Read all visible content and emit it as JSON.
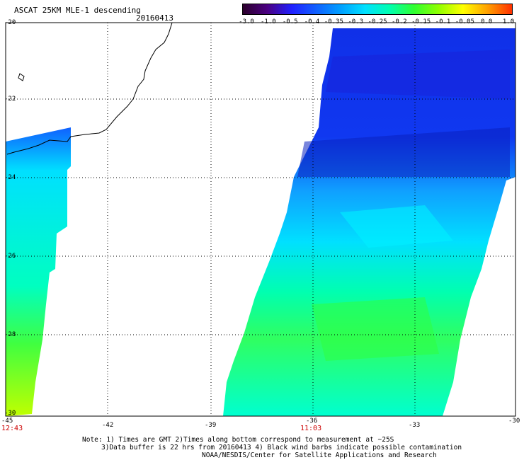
{
  "header": {
    "title": "ASCAT 25KM MLE-1 descending",
    "date": "20160413"
  },
  "colorbar": {
    "ticks": [
      "-3.0",
      "-1.0",
      "-0.5",
      "-0.4",
      "-0.35",
      "-0.3",
      "-0.25",
      "-0.2",
      "-0.15",
      "-0.1",
      "-0.05",
      "0.0",
      "1.0"
    ],
    "colors": [
      "#2b002b",
      "#4b0082",
      "#2020ff",
      "#1060ff",
      "#00a0ff",
      "#00e0ff",
      "#00ffb0",
      "#30ff30",
      "#90ff00",
      "#ffff00",
      "#ffa000",
      "#ff3000"
    ]
  },
  "axes": {
    "lat_labels": [
      "-20",
      "-22",
      "-24",
      "-26",
      "-28",
      "-30"
    ],
    "lon_labels": [
      "-45",
      "-42",
      "-39",
      "-36",
      "-33",
      "-30"
    ]
  },
  "times": {
    "left": "12:43",
    "center": "11:03"
  },
  "notes": {
    "line1": "Note: 1) Times are GMT 2)Times along bottom correspond to measurement at ~25S",
    "line2": "3)Data buffer is 22 hrs from 20160413 4) Black wind barbs indicate possible contamination",
    "line3": "NOAA/NESDIS/Center for Satellite Applications and Research"
  }
}
